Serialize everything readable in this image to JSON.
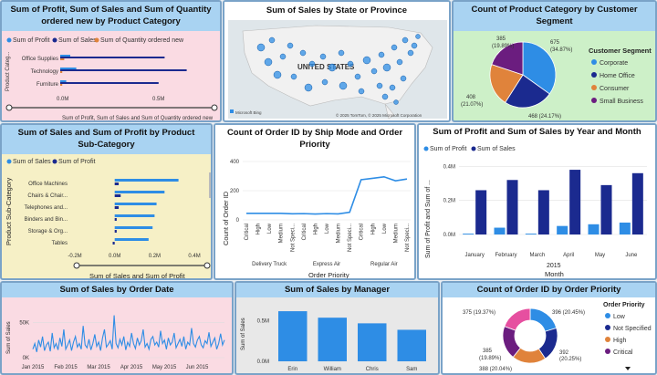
{
  "colors": {
    "series_light": "#2e8de5",
    "series_dark": "#1b2a8f",
    "series_orange": "#e0833b",
    "panel_header": "#a9d3f2"
  },
  "p1": {
    "title": "Sum of Profit, Sum of Sales and Sum of Quantity ordered new by Product Category",
    "legend": [
      "Sum of Profit",
      "Sum of Sales",
      "Sum of Quantity ordered new"
    ],
    "ylabel": "Product Categ...",
    "xlabel": "Sum of Profit, Sum of Sales and Sum of Quantity ordered new",
    "ticks": [
      "0.0M",
      "0.5M"
    ],
    "chart_data": {
      "type": "bar",
      "categories": [
        "Office Supplies",
        "Technology",
        "Furniture"
      ],
      "series": [
        {
          "name": "Sum of Profit",
          "values": [
            0.05,
            0.08,
            0.03
          ]
        },
        {
          "name": "Sum of Sales",
          "values": [
            0.52,
            0.63,
            0.49
          ]
        },
        {
          "name": "Sum of Quantity ordered new",
          "values": [
            0.02,
            0.01,
            0.01
          ]
        }
      ],
      "xlim": [
        0,
        0.7
      ]
    }
  },
  "p2": {
    "title": "Sum of Sales by State or Province",
    "map_label": "UNITED STATES",
    "bing": "Microsoft Bing",
    "copyright": "© 2025 TomTom, © 2025 Microsoft Corporation"
  },
  "p3": {
    "title": "Count of Product Category by Customer Segment",
    "legend_title": "Customer Segment",
    "chart_data": {
      "type": "pie",
      "labels": [
        "Corporate",
        "Home Office",
        "Consumer",
        "Small Business"
      ],
      "values": [
        675,
        468,
        408,
        385
      ],
      "percents": [
        "34.87%",
        "24.17%",
        "21.07%",
        "19.89%"
      ]
    },
    "slice_labels": [
      "675",
      "(34.87%)",
      "468 (24.17%)",
      "408",
      "(21.07%)",
      "385",
      "(19.89%)"
    ]
  },
  "p4": {
    "title": "Sum of Sales and Sum of Profit by Product Sub-Category",
    "legend": [
      "Sum of Sales",
      "Sum of Profit"
    ],
    "ylabel": "Product Sub-Category",
    "xlabel": "Sum of Sales and Sum of Profit",
    "ticks": [
      "-0.2M",
      "0.0M",
      "0.2M",
      "0.4M"
    ],
    "chart_data": {
      "type": "bar",
      "categories": [
        "Office Machines",
        "Chairs & Chair...",
        "Telephones and...",
        "Binders and Bin...",
        "Storage & Org...",
        "Tables"
      ],
      "series": [
        {
          "name": "Sum of Sales",
          "values": [
            0.32,
            0.25,
            0.21,
            0.2,
            0.19,
            0.17
          ]
        },
        {
          "name": "Sum of Profit",
          "values": [
            0.02,
            0.03,
            0.02,
            0.01,
            0.01,
            -0.01
          ]
        }
      ],
      "xlim": [
        -0.2,
        0.45
      ]
    }
  },
  "p5": {
    "title": "Count of Order ID by Ship Mode and Order Priority",
    "ylabel": "Count of Order ID",
    "xlabel": "Order Priority",
    "ticks": [
      "0",
      "200",
      "400"
    ],
    "groups": [
      "Delivery Truck",
      "Express Air",
      "Regular Air"
    ],
    "chart_data": {
      "type": "line",
      "categories": [
        "Critical",
        "High",
        "Low",
        "Medium",
        "Not Speci...",
        "Critical",
        "High",
        "Low",
        "Medium",
        "Not Speci...",
        "Critical",
        "High",
        "Low",
        "Medium",
        "Not Speci..."
      ],
      "values": [
        45,
        45,
        45,
        45,
        42,
        43,
        40,
        43,
        41,
        52,
        275,
        285,
        295,
        268,
        280
      ],
      "ylim": [
        0,
        400
      ]
    }
  },
  "p6": {
    "title": "Sum of Profit and Sum of Sales by Year and Month",
    "legend": [
      "Sum of Profit",
      "Sum of Sales"
    ],
    "ylabel": "Sum of Profit and Sum of ...",
    "xlabel": "Month",
    "year": "2015",
    "ticks": [
      "0.0M",
      "0.2M",
      "0.4M"
    ],
    "chart_data": {
      "type": "bar",
      "categories": [
        "January",
        "February",
        "March",
        "April",
        "May",
        "June"
      ],
      "series": [
        {
          "name": "Sum of Profit",
          "values": [
            0.005,
            0.04,
            0.005,
            0.05,
            0.06,
            0.07
          ]
        },
        {
          "name": "Sum of Sales",
          "values": [
            0.26,
            0.32,
            0.26,
            0.38,
            0.29,
            0.36
          ]
        }
      ],
      "ylim": [
        0,
        0.45
      ]
    }
  },
  "p7": {
    "title": "Sum of Sales by Order Date",
    "ylabel": "Sum of Sales",
    "ticks": [
      "0K",
      "50K"
    ],
    "xticks": [
      "Jan 2015",
      "Feb 2015",
      "Mar 2015",
      "Apr 2015",
      "May 2015",
      "Jun 2015"
    ],
    "chart_data": {
      "type": "line",
      "x": "daily Jan 2015 – Jun 2015",
      "values": [
        12,
        20,
        8,
        25,
        15,
        30,
        10,
        18,
        22,
        9,
        35,
        14,
        20,
        11,
        28,
        16,
        40,
        12,
        18,
        25,
        10,
        22,
        30,
        15,
        20,
        12,
        45,
        18,
        14,
        26,
        11,
        20,
        33,
        16,
        22,
        10,
        28,
        40,
        15,
        19,
        24,
        12,
        60,
        20,
        14,
        26,
        18,
        30,
        11,
        22,
        16,
        35,
        20,
        13,
        28,
        18,
        24,
        40,
        15,
        20,
        12,
        26,
        30,
        18,
        22,
        15,
        38,
        20,
        25,
        12,
        28,
        18,
        22,
        35,
        14,
        20,
        26,
        16,
        30,
        12,
        22,
        18,
        42,
        20,
        15,
        25,
        30,
        18,
        14,
        24,
        20,
        36,
        16,
        22,
        28,
        12,
        20,
        34,
        18,
        25
      ],
      "ylim": [
        0,
        75
      ]
    }
  },
  "p8": {
    "title": "Sum of Sales by Manager",
    "ylabel": "Sum of Sales",
    "ticks": [
      "0.0M",
      "0.5M"
    ],
    "chart_data": {
      "type": "bar",
      "categories": [
        "Erin",
        "William",
        "Chris",
        "Sam"
      ],
      "values": [
        0.62,
        0.54,
        0.47,
        0.39
      ],
      "ylim": [
        0,
        0.7
      ]
    }
  },
  "p9": {
    "title": "Count of Order ID by Order Priority",
    "legend_title": "Order Priority",
    "chart_data": {
      "type": "pie",
      "labels": [
        "Low",
        "Not Specified",
        "High",
        "Critical",
        "Medium"
      ],
      "values": [
        396,
        392,
        388,
        385,
        375
      ],
      "percents": [
        "20.45%",
        "20.25%",
        "20.04%",
        "19.89%",
        "19.37%"
      ]
    },
    "legend_items": [
      "Low",
      "Not Specified",
      "High",
      "Critical"
    ],
    "slice_labels": [
      "396 (20.45%)",
      "392",
      "(20.25%)",
      "388 (20.04%)",
      "385",
      "(19.89%)",
      "375 (19.37%)"
    ]
  }
}
